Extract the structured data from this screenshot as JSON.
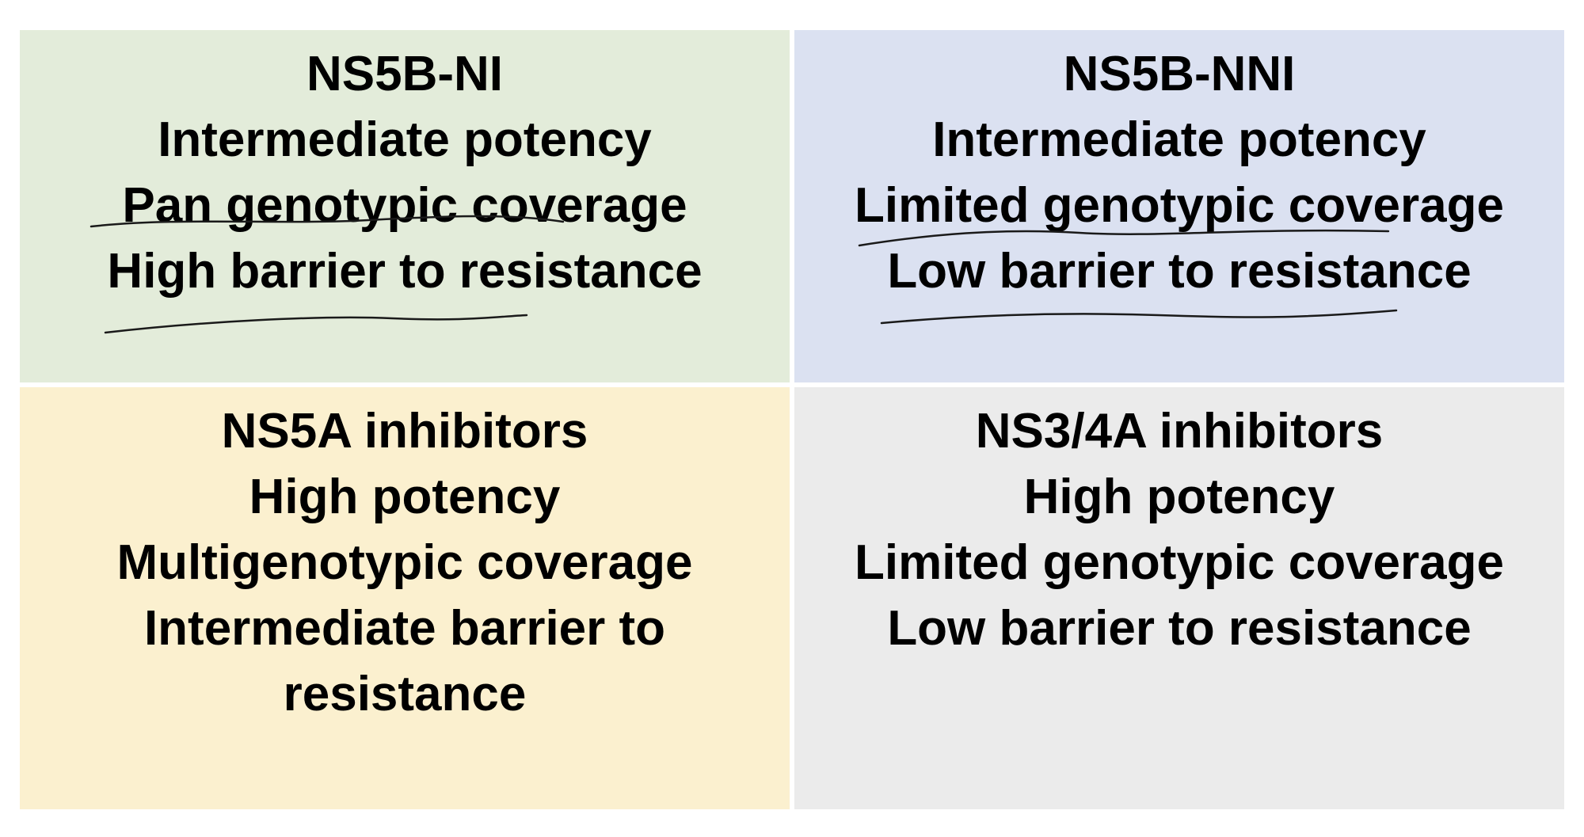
{
  "quadrants": [
    {
      "id": "ns5b-ni",
      "background": "#e3ecda",
      "title": "NS5B-NI",
      "lines": [
        "Intermediate potency",
        "Pan genotypic coverage",
        "High barrier to resistance"
      ]
    },
    {
      "id": "ns5b-nni",
      "background": "#dbe1f1",
      "title": "NS5B-NNI",
      "lines": [
        "Intermediate potency",
        "Limited genotypic coverage",
        "Low barrier to resistance"
      ]
    },
    {
      "id": "ns5a",
      "background": "#fbf0cf",
      "title": "NS5A inhibitors",
      "lines": [
        "High potency",
        "Multigenotypic coverage",
        "Intermediate barrier to resistance"
      ]
    },
    {
      "id": "ns3-4a",
      "background": "#ebebeb",
      "title": "NS3/4A inhibitors",
      "lines": [
        "High potency",
        "Limited genotypic coverage",
        "Low barrier to resistance"
      ]
    }
  ]
}
